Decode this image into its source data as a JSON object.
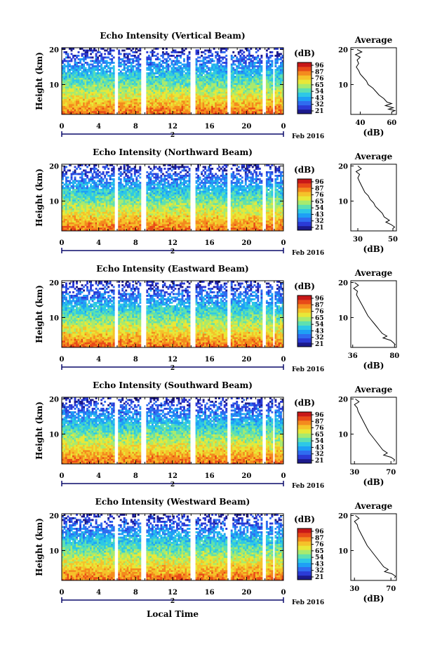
{
  "figure": {
    "date_label": "Feb 2016",
    "xlabel": "Local Time",
    "colorbar_unit": "(dB)",
    "colorbar_ticks": [
      "96",
      "87",
      "76",
      "65",
      "54",
      "43",
      "32",
      "21"
    ],
    "colors": [
      "#1c1a8c",
      "#2b3bd6",
      "#2f6cf0",
      "#1ea0f5",
      "#2dc8e6",
      "#5ee0b0",
      "#a8ea6e",
      "#e8e838",
      "#f5c22a",
      "#f48a1e",
      "#e84a18",
      "#c81818"
    ],
    "avg_title": "Average",
    "avg_xlabel": "(dB)",
    "time_axis_ticks": [
      "0",
      "4",
      "8",
      "12",
      "16",
      "20",
      "0"
    ],
    "day_label": "2"
  },
  "chart_data": [
    {
      "type": "heatmap",
      "title": "Echo Intensity (Vertical Beam)",
      "xlabel": "Local Time",
      "ylabel": "Height (km)",
      "x_range": [
        0,
        24
      ],
      "y_range": [
        1.5,
        20.5
      ],
      "y_ticks": [
        10,
        20
      ],
      "color_range_db": [
        21,
        96
      ],
      "gap_columns_hours": [
        [
          5.7,
          6.0
        ],
        [
          8.6,
          9.2
        ],
        [
          14.0,
          14.5
        ],
        [
          17.9,
          18.3
        ],
        [
          21.7,
          22.0
        ],
        [
          22.8,
          23.0
        ]
      ],
      "average_profile": {
        "x_ticks": [
          40,
          60
        ],
        "xlim": [
          34,
          63
        ],
        "points": [
          [
            38,
            20
          ],
          [
            41,
            19.3
          ],
          [
            37,
            18.5
          ],
          [
            40,
            17.8
          ],
          [
            38,
            17
          ],
          [
            39,
            16
          ],
          [
            37.5,
            15
          ],
          [
            39,
            14
          ],
          [
            40,
            13
          ],
          [
            42,
            12
          ],
          [
            44,
            11
          ],
          [
            45,
            10
          ],
          [
            48,
            9
          ],
          [
            50,
            8
          ],
          [
            52,
            7
          ],
          [
            55,
            6
          ],
          [
            57,
            5
          ],
          [
            60,
            4.6
          ],
          [
            56,
            4
          ],
          [
            61,
            3.4
          ],
          [
            58,
            3
          ],
          [
            62,
            2.6
          ],
          [
            60,
            2.2
          ]
        ]
      }
    },
    {
      "type": "heatmap",
      "title": "Echo Intensity (Northward Beam)",
      "xlabel": "Local Time",
      "ylabel": "Height (km)",
      "x_range": [
        0,
        24
      ],
      "y_range": [
        1.5,
        20.5
      ],
      "y_ticks": [
        10,
        20
      ],
      "color_range_db": [
        21,
        96
      ],
      "gap_columns_hours": [
        [
          5.7,
          6.0
        ],
        [
          8.6,
          9.2
        ],
        [
          14.0,
          14.5
        ],
        [
          17.9,
          18.3
        ],
        [
          21.7,
          22.0
        ],
        [
          22.8,
          23.0
        ]
      ],
      "average_profile": {
        "x_ticks": [
          30,
          50
        ],
        "xlim": [
          26,
          52
        ],
        "points": [
          [
            30,
            20
          ],
          [
            32,
            19.2
          ],
          [
            29,
            18.4
          ],
          [
            31,
            17.6
          ],
          [
            30,
            16.6
          ],
          [
            31,
            15.5
          ],
          [
            32,
            14.5
          ],
          [
            33,
            13.5
          ],
          [
            34,
            12.5
          ],
          [
            36,
            11.5
          ],
          [
            37,
            10.5
          ],
          [
            39,
            9.5
          ],
          [
            40,
            8.5
          ],
          [
            42,
            7.5
          ],
          [
            44,
            6.5
          ],
          [
            45,
            5.5
          ],
          [
            48,
            4.5
          ],
          [
            46,
            4
          ],
          [
            49,
            3.3
          ],
          [
            51,
            2.6
          ],
          [
            50,
            2.2
          ]
        ]
      }
    },
    {
      "type": "heatmap",
      "title": "Echo Intensity (Eastward Beam)",
      "xlabel": "Local Time",
      "ylabel": "Height (km)",
      "x_range": [
        0,
        24
      ],
      "y_range": [
        1.5,
        20.5
      ],
      "y_ticks": [
        10,
        20
      ],
      "color_range_db": [
        21,
        96
      ],
      "gap_columns_hours": [
        [
          5.7,
          6.0
        ],
        [
          8.6,
          9.2
        ],
        [
          14.0,
          14.5
        ],
        [
          17.9,
          18.3
        ],
        [
          21.7,
          22.0
        ],
        [
          22.8,
          23.0
        ]
      ],
      "average_profile": {
        "x_ticks": [
          36,
          80
        ],
        "xlim": [
          34,
          82
        ],
        "points": [
          [
            38,
            20
          ],
          [
            42,
            19.2
          ],
          [
            37,
            18.3
          ],
          [
            41,
            17.5
          ],
          [
            40,
            16.5
          ],
          [
            42,
            15.5
          ],
          [
            44,
            14.5
          ],
          [
            46,
            13.5
          ],
          [
            48,
            12.5
          ],
          [
            50,
            11.5
          ],
          [
            52,
            10.5
          ],
          [
            55,
            9.5
          ],
          [
            58,
            8.5
          ],
          [
            61,
            7.5
          ],
          [
            64,
            6.5
          ],
          [
            67,
            5.5
          ],
          [
            72,
            4.7
          ],
          [
            68,
            4.2
          ],
          [
            76,
            3.5
          ],
          [
            79,
            2.8
          ],
          [
            81,
            2.2
          ]
        ]
      }
    },
    {
      "type": "heatmap",
      "title": "Echo Intensity (Southward Beam)",
      "xlabel": "Local Time",
      "ylabel": "Height (km)",
      "x_range": [
        0,
        24
      ],
      "y_range": [
        1.5,
        20.5
      ],
      "y_ticks": [
        10,
        20
      ],
      "color_range_db": [
        21,
        96
      ],
      "gap_columns_hours": [
        [
          5.7,
          6.0
        ],
        [
          8.6,
          9.2
        ],
        [
          14.0,
          14.5
        ],
        [
          17.9,
          18.3
        ],
        [
          21.7,
          22.0
        ],
        [
          22.8,
          23.0
        ]
      ],
      "average_profile": {
        "x_ticks": [
          30,
          70
        ],
        "xlim": [
          26,
          76
        ],
        "points": [
          [
            31,
            20
          ],
          [
            35,
            19.2
          ],
          [
            30,
            18.4
          ],
          [
            33,
            17.5
          ],
          [
            34,
            16.5
          ],
          [
            36,
            15.5
          ],
          [
            38,
            14.5
          ],
          [
            40,
            13.5
          ],
          [
            42,
            12.5
          ],
          [
            44,
            11.5
          ],
          [
            46,
            10.5
          ],
          [
            49,
            9.5
          ],
          [
            52,
            8.5
          ],
          [
            55,
            7.5
          ],
          [
            58,
            6.5
          ],
          [
            61,
            5.5
          ],
          [
            66,
            4.6
          ],
          [
            62,
            4
          ],
          [
            70,
            3.4
          ],
          [
            74,
            2.7
          ],
          [
            73,
            2.2
          ]
        ]
      }
    },
    {
      "type": "heatmap",
      "title": "Echo Intensity (Westward Beam)",
      "xlabel": "Local Time",
      "ylabel": "Height (km)",
      "x_range": [
        0,
        24
      ],
      "y_range": [
        1.5,
        20.5
      ],
      "y_ticks": [
        10,
        20
      ],
      "color_range_db": [
        21,
        96
      ],
      "gap_columns_hours": [
        [
          5.7,
          6.0
        ],
        [
          8.6,
          9.2
        ],
        [
          14.0,
          14.5
        ],
        [
          17.9,
          18.3
        ],
        [
          21.7,
          22.0
        ],
        [
          22.8,
          23.0
        ]
      ],
      "average_profile": {
        "x_ticks": [
          30,
          70
        ],
        "xlim": [
          26,
          76
        ],
        "points": [
          [
            31,
            20
          ],
          [
            35,
            19.2
          ],
          [
            30,
            18.3
          ],
          [
            33,
            17.4
          ],
          [
            34,
            16.4
          ],
          [
            36,
            15.4
          ],
          [
            38,
            14.4
          ],
          [
            40,
            13.4
          ],
          [
            42,
            12.4
          ],
          [
            44,
            11.4
          ],
          [
            47,
            10.4
          ],
          [
            50,
            9.4
          ],
          [
            53,
            8.4
          ],
          [
            56,
            7.4
          ],
          [
            59,
            6.4
          ],
          [
            62,
            5.4
          ],
          [
            67,
            4.6
          ],
          [
            63,
            4
          ],
          [
            71,
            3.4
          ],
          [
            75,
            2.7
          ],
          [
            74,
            2.2
          ]
        ]
      }
    }
  ]
}
